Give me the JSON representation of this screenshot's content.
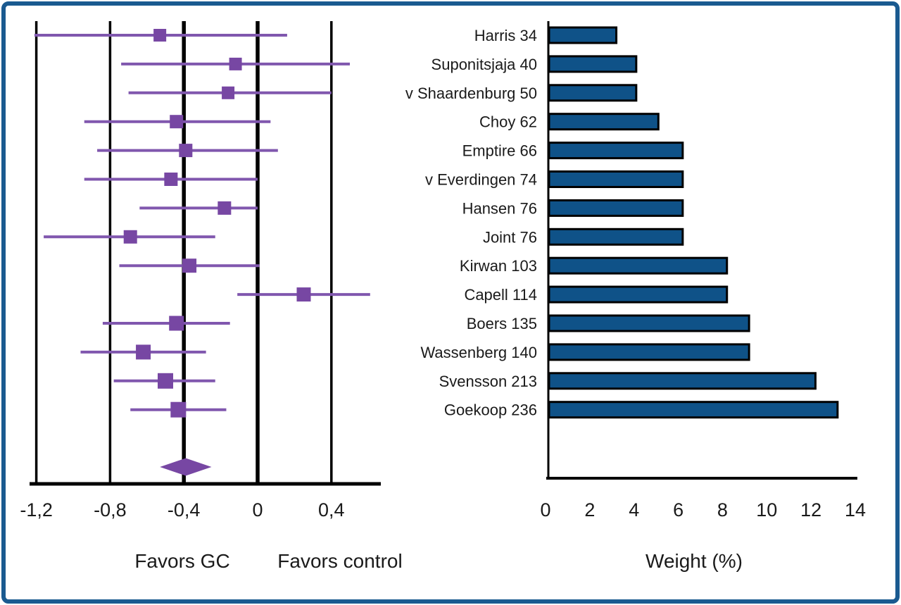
{
  "figure": {
    "border_color": "#1A5A90",
    "background_color": "#FFFFFF",
    "axis_color": "#000000",
    "text_color": "#1A1A1A"
  },
  "chart_data": [
    {
      "type": "scatter",
      "subtype": "forest-plot",
      "title": "",
      "xlim": [
        -1.35,
        0.67
      ],
      "x_tick_labels": [
        "-1,2",
        "-0,8",
        "-0,4",
        "0",
        "0,4"
      ],
      "x_tick_values": [
        -1.2,
        -0.8,
        -0.4,
        0,
        0.4
      ],
      "emphasized_gridlines": [
        -0.4,
        0
      ],
      "grid": "vertical-lines",
      "footer_labels": {
        "left": "Favors GC",
        "right": "Favors control"
      },
      "line_color": "#8057AE",
      "marker_color": "#7747A3",
      "studies": [
        {
          "label": "Harris 34",
          "estimate": -0.53,
          "ci_low": -1.21,
          "ci_high": 0.16
        },
        {
          "label": "Suponitsjaja 40",
          "estimate": -0.12,
          "ci_low": -0.74,
          "ci_high": 0.5
        },
        {
          "label": "v Shaardenburg 50",
          "estimate": -0.16,
          "ci_low": -0.7,
          "ci_high": 0.4
        },
        {
          "label": "Choy 62",
          "estimate": -0.44,
          "ci_low": -0.94,
          "ci_high": 0.07
        },
        {
          "label": "Emptire 66",
          "estimate": -0.39,
          "ci_low": -0.87,
          "ci_high": 0.11
        },
        {
          "label": "v Everdingen 74",
          "estimate": -0.47,
          "ci_low": -0.94,
          "ci_high": 0.0
        },
        {
          "label": "Hansen 76",
          "estimate": -0.18,
          "ci_low": -0.64,
          "ci_high": 0.0
        },
        {
          "label": "Joint 76",
          "estimate": -0.69,
          "ci_low": -1.16,
          "ci_high": -0.23
        },
        {
          "label": "Kirwan 103",
          "estimate": -0.37,
          "ci_low": -0.75,
          "ci_high": 0.01
        },
        {
          "label": "Capell 114",
          "estimate": 0.25,
          "ci_low": -0.11,
          "ci_high": 0.61
        },
        {
          "label": "Boers 135",
          "estimate": -0.44,
          "ci_low": -0.84,
          "ci_high": -0.15
        },
        {
          "label": "Wassenberg 140",
          "estimate": -0.62,
          "ci_low": -0.96,
          "ci_high": -0.28
        },
        {
          "label": "Svensson 213",
          "estimate": -0.5,
          "ci_low": -0.78,
          "ci_high": -0.23
        },
        {
          "label": "Goekoop 236",
          "estimate": -0.43,
          "ci_low": -0.69,
          "ci_high": -0.17
        }
      ],
      "summary": {
        "estimate": -0.39,
        "ci_low": -0.53,
        "ci_high": -0.25
      }
    },
    {
      "type": "bar",
      "orientation": "horizontal",
      "title": "",
      "xlabel": "Weight (%)",
      "xlim": [
        0,
        14
      ],
      "x_ticks": [
        0,
        2,
        4,
        6,
        8,
        10,
        12,
        14
      ],
      "bar_color": "#0F5288",
      "bar_border_color": "#000000",
      "categories": [
        "Harris 34",
        "Suponitsjaja 40",
        "v Shaardenburg 50",
        "Choy 62",
        "Emptire 66",
        "v Everdingen 74",
        "Hansen 76",
        "Joint 76",
        "Kirwan 103",
        "Capell 114",
        "Boers 135",
        "Wassenberg 140",
        "Svensson 213",
        "Goekoop 236"
      ],
      "values": [
        3.2,
        4.1,
        4.1,
        5.1,
        6.2,
        6.2,
        6.2,
        6.2,
        8.2,
        8.2,
        9.2,
        9.2,
        12.2,
        13.2
      ]
    }
  ]
}
